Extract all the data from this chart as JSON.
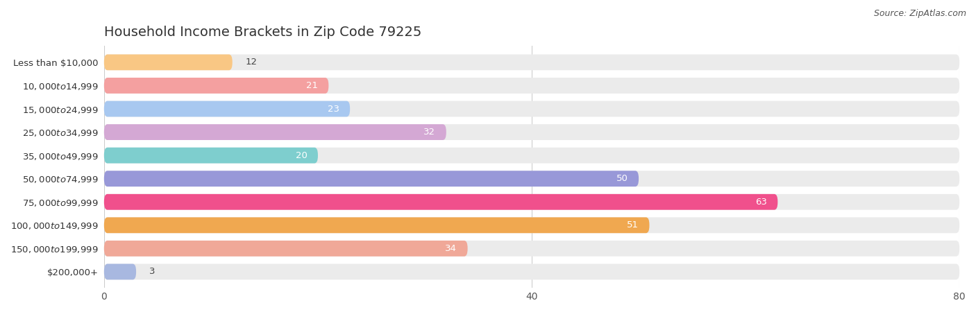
{
  "title": "Household Income Brackets in Zip Code 79225",
  "source": "Source: ZipAtlas.com",
  "categories": [
    "Less than $10,000",
    "$10,000 to $14,999",
    "$15,000 to $24,999",
    "$25,000 to $34,999",
    "$35,000 to $49,999",
    "$50,000 to $74,999",
    "$75,000 to $99,999",
    "$100,000 to $149,999",
    "$150,000 to $199,999",
    "$200,000+"
  ],
  "values": [
    12,
    21,
    23,
    32,
    20,
    50,
    63,
    51,
    34,
    3
  ],
  "colors": [
    "#F9C784",
    "#F4A0A0",
    "#A8C8F0",
    "#D4A8D4",
    "#7ECECE",
    "#9898D8",
    "#F0508C",
    "#F0A850",
    "#F0A898",
    "#A8B8E0"
  ],
  "bar_bg_color": "#EBEBEB",
  "xlim": [
    0,
    80
  ],
  "xticks": [
    0,
    40,
    80
  ],
  "background_color": "#FFFFFF",
  "title_fontsize": 14,
  "label_fontsize": 9.5,
  "value_fontsize": 9.5,
  "bar_height": 0.68,
  "value_threshold_inside": 15,
  "rounding_size": 0.32
}
